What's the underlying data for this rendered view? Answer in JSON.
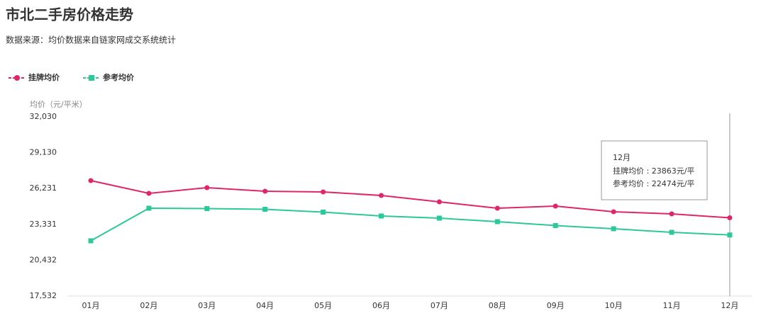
{
  "chart_data": {
    "type": "line",
    "title": "市北二手房价格走势",
    "subtitle": "数据来源：均价数据来自链家网成交系统统计",
    "y_label": "均价（元/平米）",
    "categories": [
      "01月",
      "02月",
      "03月",
      "04月",
      "05月",
      "06月",
      "07月",
      "08月",
      "09月",
      "10月",
      "11月",
      "12月"
    ],
    "series": [
      {
        "name": "挂牌均价",
        "color": "#e0266a",
        "marker": "circle",
        "values": [
          26873,
          25842,
          26300,
          26014,
          25956,
          25670,
          25154,
          24638,
          24810,
          24352,
          24180,
          23863
        ]
      },
      {
        "name": "参考均价",
        "color": "#2ec79a",
        "marker": "square",
        "values": [
          22002,
          24638,
          24610,
          24552,
          24323,
          24008,
          23836,
          23550,
          23235,
          22977,
          22690,
          22474
        ]
      }
    ],
    "ylim": [
      17532,
      32030
    ],
    "yticks": [
      {
        "value": 17532,
        "label": "17,532"
      },
      {
        "value": 20432,
        "label": "20,432"
      },
      {
        "value": 23331,
        "label": "23,331"
      },
      {
        "value": 26231,
        "label": "26,231"
      },
      {
        "value": 29130,
        "label": "29,130"
      },
      {
        "value": 32030,
        "label": "32,030"
      }
    ],
    "grid": false,
    "legend": "top-left",
    "tooltip": {
      "title": "12月",
      "lines": [
        "挂牌均价 : 23863元/平",
        "参考均价 : 22474元/平"
      ]
    }
  }
}
